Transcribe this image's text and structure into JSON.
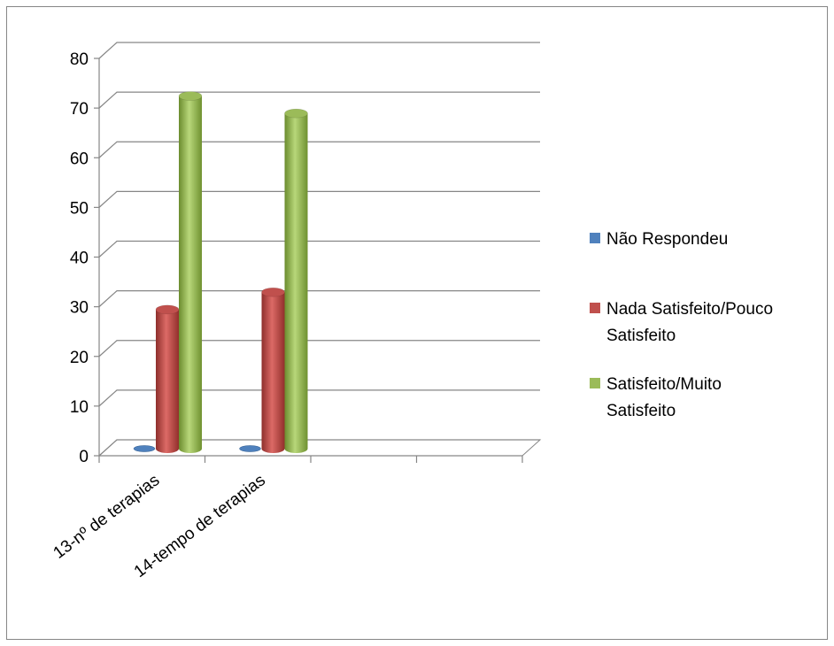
{
  "chart_data": {
    "type": "bar",
    "categories": [
      "13-nº de terapias",
      "14-tempo de terapias"
    ],
    "series": [
      {
        "name": "Não Respondeu",
        "values": [
          0,
          0
        ],
        "color": "#4F81BD"
      },
      {
        "name": "Nada Satisfeito/Pouco Satisfeito",
        "values": [
          28,
          31.5
        ],
        "color": "#C0504D"
      },
      {
        "name": "Satisfeito/Muito Satisfeito",
        "values": [
          71,
          67.5
        ],
        "color": "#9BBB59"
      }
    ],
    "legend": {
      "placement": "right",
      "entries": [
        {
          "lines": [
            "Não Respondeu"
          ]
        },
        {
          "lines": [
            "Nada Satisfeito/Pouco",
            "Satisfeito"
          ]
        },
        {
          "lines": [
            "Satisfeito/Muito",
            "Satisfeito"
          ]
        }
      ]
    },
    "yticks": [
      "0",
      "10",
      "20",
      "30",
      "40",
      "50",
      "60",
      "70",
      "80"
    ],
    "ylim": [
      0,
      80
    ],
    "grid": true,
    "style": "3d-cylinder"
  }
}
